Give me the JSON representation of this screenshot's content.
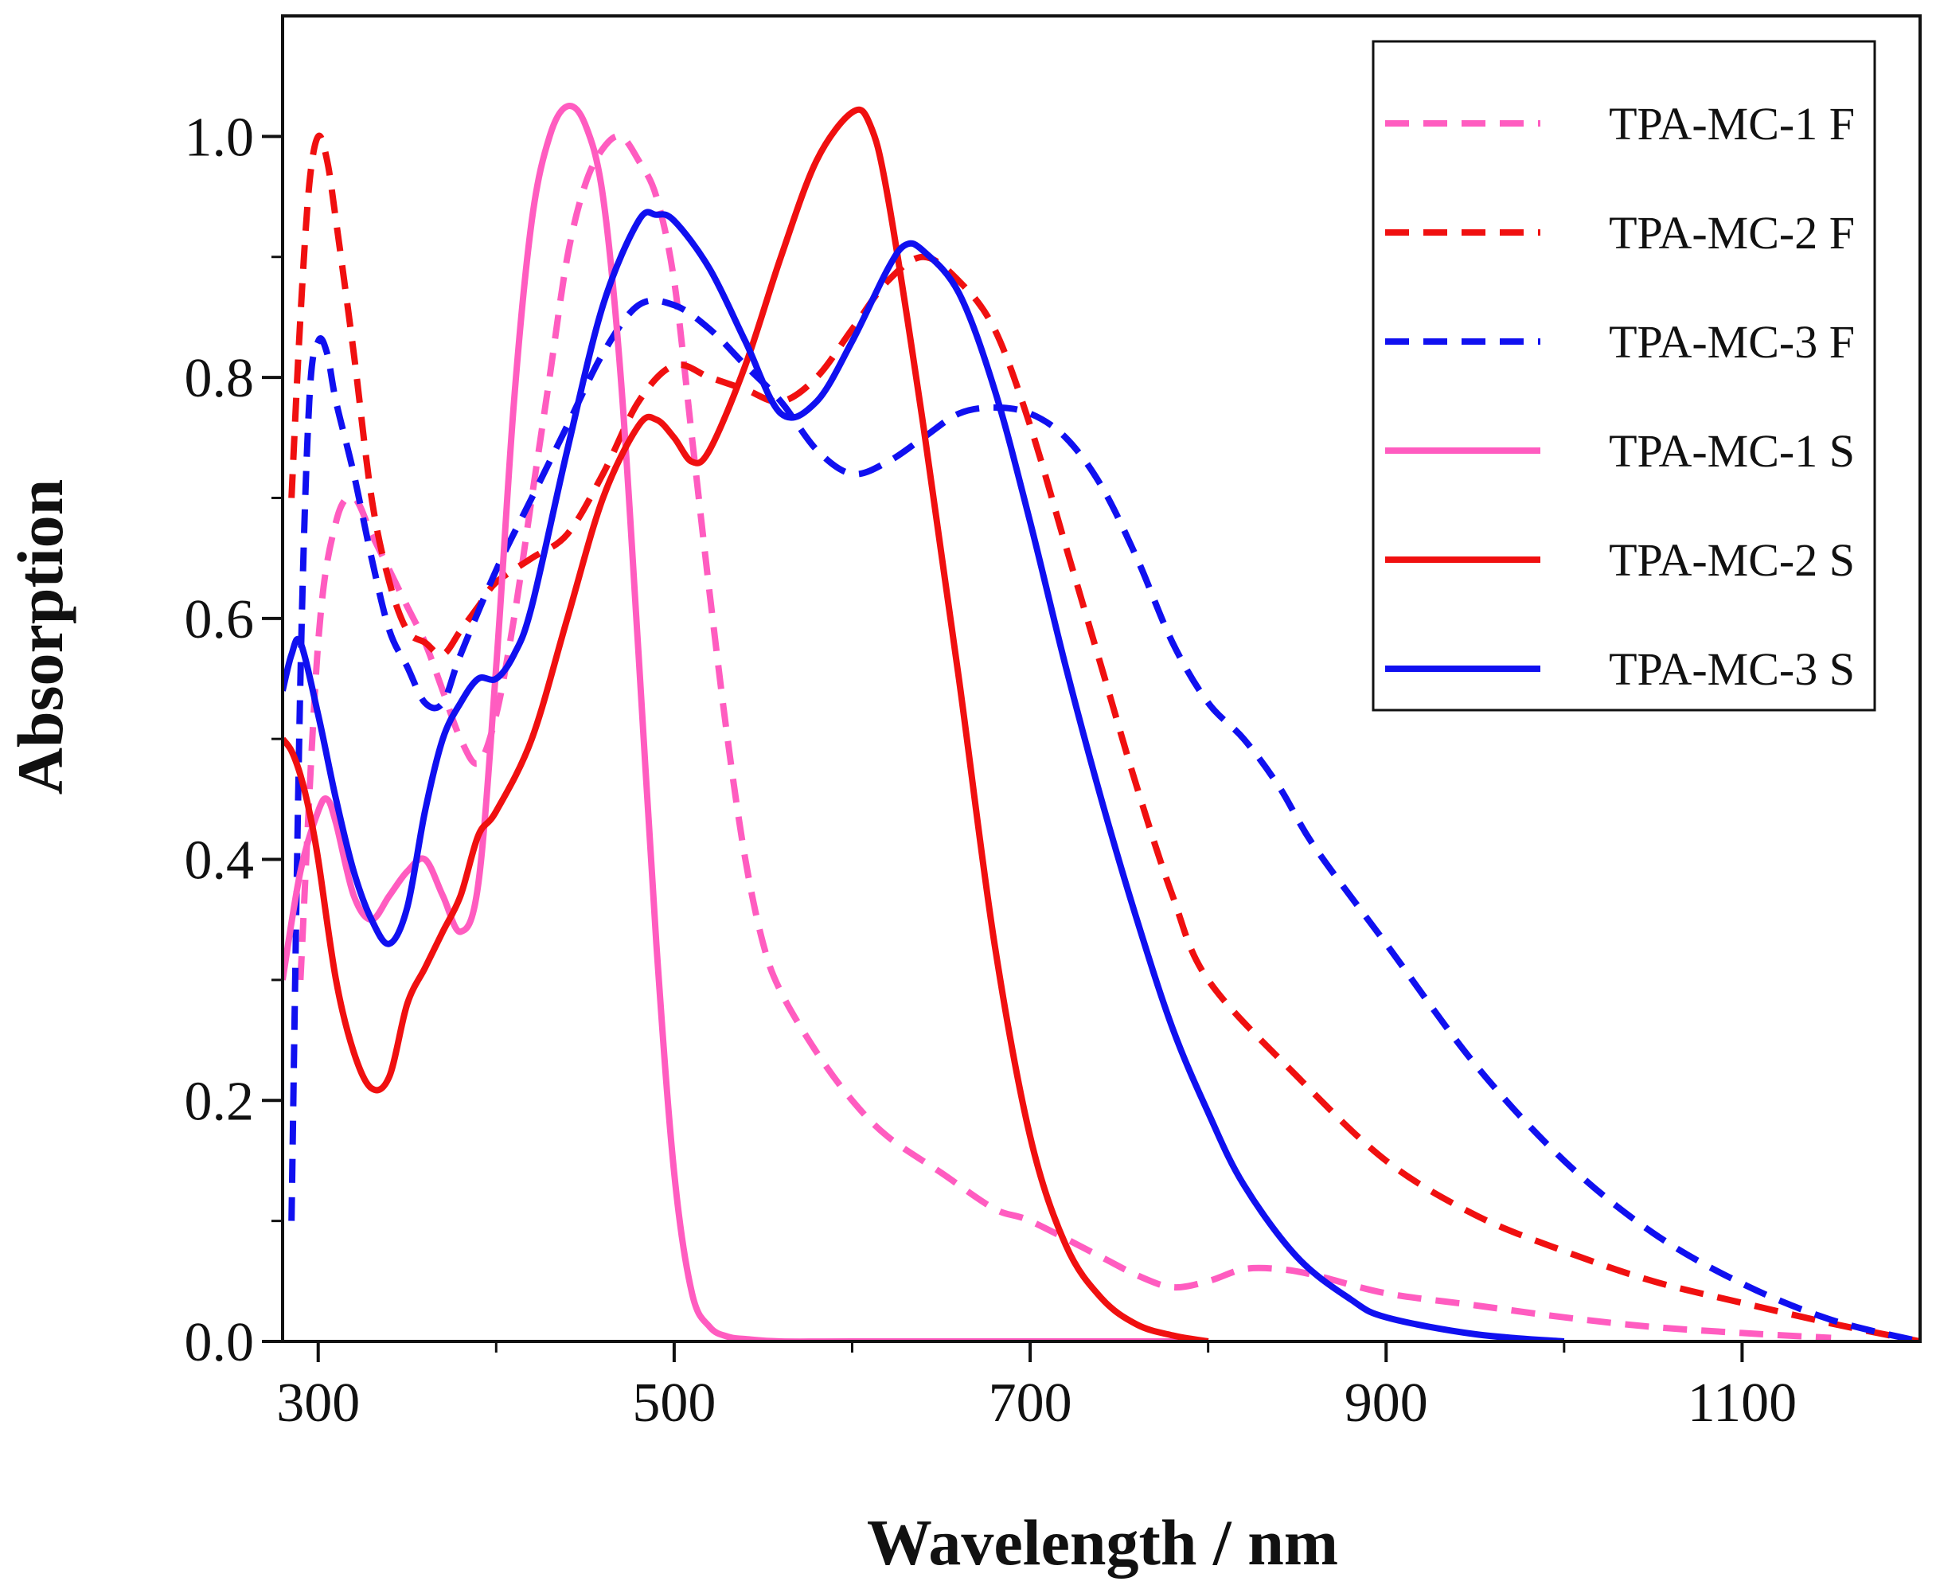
{
  "chart_data": {
    "type": "line",
    "title": "",
    "xlabel": "Wavelength / nm",
    "ylabel": "Absorption",
    "xlim": [
      280,
      1200
    ],
    "ylim": [
      0.0,
      1.1
    ],
    "xticks": [
      300,
      500,
      700,
      900,
      1100
    ],
    "xtick_labels": [
      "300",
      "500",
      "700",
      "900",
      "1100"
    ],
    "yticks": [
      0.0,
      0.2,
      0.4,
      0.6,
      0.8,
      1.0
    ],
    "ytick_labels": [
      "0.0",
      "0.2",
      "0.4",
      "0.6",
      "0.8",
      "1.0"
    ],
    "grid": false,
    "legend_position": "top-right",
    "series": [
      {
        "name": "TPA-MC-1 F",
        "color": "#ff5cc0",
        "dash": "dashed",
        "x": [
          290,
          300,
          310,
          320,
          330,
          340,
          350,
          360,
          370,
          380,
          390,
          400,
          410,
          420,
          430,
          440,
          450,
          460,
          470,
          480,
          490,
          500,
          510,
          520,
          530,
          540,
          550,
          560,
          580,
          600,
          620,
          650,
          680,
          700,
          740,
          760,
          780,
          800,
          820,
          840,
          860,
          900,
          950,
          1000,
          1050,
          1100,
          1150
        ],
        "y": [
          0.3,
          0.58,
          0.68,
          0.7,
          0.67,
          0.64,
          0.61,
          0.58,
          0.54,
          0.5,
          0.48,
          0.52,
          0.6,
          0.7,
          0.8,
          0.9,
          0.96,
          0.99,
          1.0,
          0.98,
          0.95,
          0.88,
          0.75,
          0.62,
          0.5,
          0.4,
          0.33,
          0.29,
          0.24,
          0.2,
          0.17,
          0.14,
          0.11,
          0.1,
          0.07,
          0.055,
          0.045,
          0.05,
          0.06,
          0.06,
          0.055,
          0.04,
          0.03,
          0.02,
          0.012,
          0.007,
          0.003
        ]
      },
      {
        "name": "TPA-MC-2 F",
        "color": "#f01010",
        "dash": "dashed",
        "x": [
          285,
          290,
          295,
          300,
          305,
          310,
          320,
          330,
          340,
          350,
          360,
          370,
          380,
          390,
          400,
          420,
          440,
          460,
          480,
          500,
          520,
          540,
          560,
          580,
          600,
          620,
          640,
          660,
          680,
          700,
          720,
          740,
          760,
          780,
          800,
          850,
          900,
          950,
          1000,
          1050,
          1100,
          1150,
          1200
        ],
        "y": [
          0.7,
          0.85,
          0.96,
          1.0,
          0.98,
          0.93,
          0.82,
          0.7,
          0.63,
          0.59,
          0.58,
          0.57,
          0.59,
          0.61,
          0.63,
          0.65,
          0.67,
          0.72,
          0.78,
          0.81,
          0.8,
          0.79,
          0.78,
          0.8,
          0.84,
          0.88,
          0.9,
          0.88,
          0.84,
          0.76,
          0.66,
          0.56,
          0.46,
          0.37,
          0.3,
          0.22,
          0.15,
          0.105,
          0.075,
          0.05,
          0.032,
          0.015,
          0.0
        ]
      },
      {
        "name": "TPA-MC-3 F",
        "color": "#1010f0",
        "dash": "dashed",
        "x": [
          285,
          290,
          295,
          300,
          305,
          310,
          320,
          330,
          340,
          350,
          360,
          370,
          380,
          400,
          420,
          440,
          460,
          480,
          500,
          520,
          540,
          560,
          580,
          600,
          620,
          640,
          660,
          680,
          700,
          720,
          740,
          760,
          780,
          800,
          820,
          840,
          860,
          900,
          950,
          1000,
          1050,
          1100,
          1150,
          1200
        ],
        "y": [
          0.1,
          0.55,
          0.78,
          0.83,
          0.82,
          0.78,
          0.72,
          0.65,
          0.59,
          0.56,
          0.53,
          0.53,
          0.57,
          0.64,
          0.7,
          0.76,
          0.82,
          0.86,
          0.86,
          0.84,
          0.81,
          0.78,
          0.74,
          0.72,
          0.73,
          0.75,
          0.77,
          0.775,
          0.77,
          0.75,
          0.71,
          0.65,
          0.58,
          0.53,
          0.5,
          0.46,
          0.41,
          0.33,
          0.23,
          0.15,
          0.09,
          0.048,
          0.018,
          0.0
        ]
      },
      {
        "name": "TPA-MC-1 S",
        "color": "#ff5cc0",
        "dash": "solid",
        "x": [
          280,
          290,
          300,
          305,
          310,
          320,
          330,
          340,
          350,
          360,
          370,
          380,
          390,
          400,
          410,
          420,
          430,
          440,
          450,
          460,
          470,
          480,
          490,
          500,
          510,
          520,
          530,
          540,
          560,
          600,
          700,
          800
        ],
        "y": [
          0.3,
          0.39,
          0.44,
          0.45,
          0.43,
          0.37,
          0.35,
          0.37,
          0.39,
          0.4,
          0.37,
          0.34,
          0.38,
          0.56,
          0.78,
          0.93,
          1.0,
          1.025,
          1.01,
          0.95,
          0.8,
          0.57,
          0.33,
          0.14,
          0.04,
          0.012,
          0.004,
          0.002,
          0.0,
          0.0,
          0.0,
          0.0
        ]
      },
      {
        "name": "TPA-MC-2 S",
        "color": "#f01010",
        "dash": "solid",
        "x": [
          280,
          285,
          290,
          295,
          300,
          310,
          320,
          330,
          340,
          350,
          360,
          370,
          380,
          390,
          400,
          420,
          440,
          460,
          480,
          490,
          500,
          510,
          520,
          540,
          560,
          580,
          600,
          610,
          620,
          640,
          660,
          680,
          700,
          720,
          740,
          760,
          780,
          800
        ],
        "y": [
          0.5,
          0.49,
          0.47,
          0.44,
          0.4,
          0.3,
          0.24,
          0.21,
          0.22,
          0.28,
          0.31,
          0.34,
          0.37,
          0.42,
          0.44,
          0.5,
          0.6,
          0.7,
          0.76,
          0.765,
          0.75,
          0.73,
          0.74,
          0.81,
          0.9,
          0.98,
          1.02,
          1.01,
          0.95,
          0.76,
          0.55,
          0.33,
          0.17,
          0.08,
          0.036,
          0.014,
          0.005,
          0.0
        ]
      },
      {
        "name": "TPA-MC-3 S",
        "color": "#1010f0",
        "dash": "solid",
        "x": [
          280,
          285,
          290,
          300,
          310,
          320,
          330,
          340,
          350,
          360,
          370,
          380,
          390,
          400,
          410,
          420,
          440,
          460,
          480,
          490,
          500,
          520,
          540,
          560,
          580,
          600,
          620,
          630,
          640,
          660,
          680,
          700,
          720,
          740,
          760,
          780,
          800,
          820,
          850,
          880,
          900,
          950,
          1000
        ],
        "y": [
          0.54,
          0.57,
          0.58,
          0.52,
          0.45,
          0.39,
          0.35,
          0.33,
          0.36,
          0.44,
          0.5,
          0.53,
          0.55,
          0.55,
          0.57,
          0.61,
          0.74,
          0.86,
          0.93,
          0.935,
          0.93,
          0.89,
          0.83,
          0.77,
          0.78,
          0.83,
          0.89,
          0.91,
          0.905,
          0.87,
          0.79,
          0.68,
          0.56,
          0.45,
          0.35,
          0.26,
          0.19,
          0.13,
          0.07,
          0.035,
          0.02,
          0.006,
          0.0
        ]
      }
    ]
  }
}
